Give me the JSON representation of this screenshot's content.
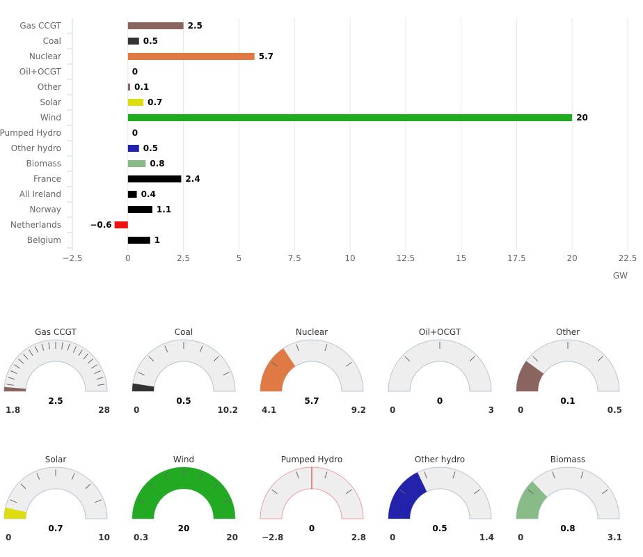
{
  "chart_data": [
    {
      "type": "bar",
      "orientation": "horizontal",
      "title": "",
      "xlabel": "GW",
      "ylabel": "",
      "xlim": [
        -2.5,
        22.5
      ],
      "xticks": [
        "−2.5",
        "0",
        "2.5",
        "5",
        "7.5",
        "10",
        "12.5",
        "15",
        "17.5",
        "20",
        "22.5"
      ],
      "xtick_values": [
        -2.5,
        0,
        2.5,
        5,
        7.5,
        10,
        12.5,
        15,
        17.5,
        20,
        22.5
      ],
      "grid": true,
      "categories": [
        "Gas CCGT",
        "Coal",
        "Nuclear",
        "Oil+OCGT",
        "Other",
        "Solar",
        "Wind",
        "Pumped Hydro",
        "Other hydro",
        "Biomass",
        "France",
        "All Ireland",
        "Norway",
        "Netherlands",
        "Belgium"
      ],
      "values": [
        2.5,
        0.5,
        5.7,
        0,
        0.1,
        0.7,
        20,
        0,
        0.5,
        0.8,
        2.4,
        0.4,
        1.1,
        -0.6,
        1
      ],
      "labels": [
        "2.5",
        "0.5",
        "5.7",
        "0",
        "0.1",
        "0.7",
        "20",
        "0",
        "0.5",
        "0.8",
        "2.4",
        "0.4",
        "1.1",
        "−0.6",
        "1"
      ],
      "colors": [
        "#8a6560",
        "#333333",
        "#e07a45",
        "#c0c0c0",
        "#8a6560",
        "#dddd11",
        "#22aa22",
        "#cc6677",
        "#2222aa",
        "#88bb88",
        "#000000",
        "#000000",
        "#000000",
        "#ee1111",
        "#000000"
      ]
    },
    {
      "type": "gauge",
      "gauges": [
        {
          "title": "Gas CCGT",
          "value": 2.5,
          "value_label": "2.5",
          "min": 1.8,
          "min_label": "1.8",
          "max": 28,
          "max_label": "28",
          "color": "#8a6560",
          "ticks": 22
        },
        {
          "title": "Coal",
          "value": 0.5,
          "value_label": "0.5",
          "min": 0,
          "min_label": "0",
          "max": 10.2,
          "max_label": "10.2",
          "color": "#333333",
          "ticks": 8
        },
        {
          "title": "Nuclear",
          "value": 5.7,
          "value_label": "5.7",
          "min": 4.1,
          "min_label": "4.1",
          "max": 9.2,
          "max_label": "9.2",
          "color": "#e07a45",
          "ticks": 5
        },
        {
          "title": "Oil+OCGT",
          "value": 0,
          "value_label": "0",
          "min": 0,
          "min_label": "0",
          "max": 3,
          "max_label": "3",
          "color": "#c0c0c0",
          "ticks": 4
        },
        {
          "title": "Other",
          "value": 0.1,
          "value_label": "0.1",
          "min": 0,
          "min_label": "0",
          "max": 0.5,
          "max_label": "0.5",
          "color": "#8a6560",
          "ticks": 4
        },
        {
          "title": "Solar",
          "value": 0.7,
          "value_label": "0.7",
          "min": 0,
          "min_label": "0",
          "max": 10,
          "max_label": "10",
          "color": "#dddd11",
          "ticks": 8
        },
        {
          "title": "Wind",
          "value": 20,
          "value_label": "20",
          "min": 0.3,
          "min_label": "0.3",
          "max": 20,
          "max_label": "20",
          "color": "#22aa22",
          "ticks": 8
        },
        {
          "title": "Pumped Hydro",
          "value": 0,
          "value_label": "0",
          "min": -2.8,
          "min_label": "−2.8",
          "max": 2.8,
          "max_label": "2.8",
          "color": "#cc2222",
          "ticks": 5,
          "centered": true
        },
        {
          "title": "Other hydro",
          "value": 0.5,
          "value_label": "0.5",
          "min": 0,
          "min_label": "0",
          "max": 1.4,
          "max_label": "1.4",
          "color": "#2222aa",
          "ticks": 5
        },
        {
          "title": "Biomass",
          "value": 0.8,
          "value_label": "0.8",
          "min": 0,
          "min_label": "0",
          "max": 3.1,
          "max_label": "3.1",
          "color": "#88bb88",
          "ticks": 5
        }
      ]
    }
  ]
}
